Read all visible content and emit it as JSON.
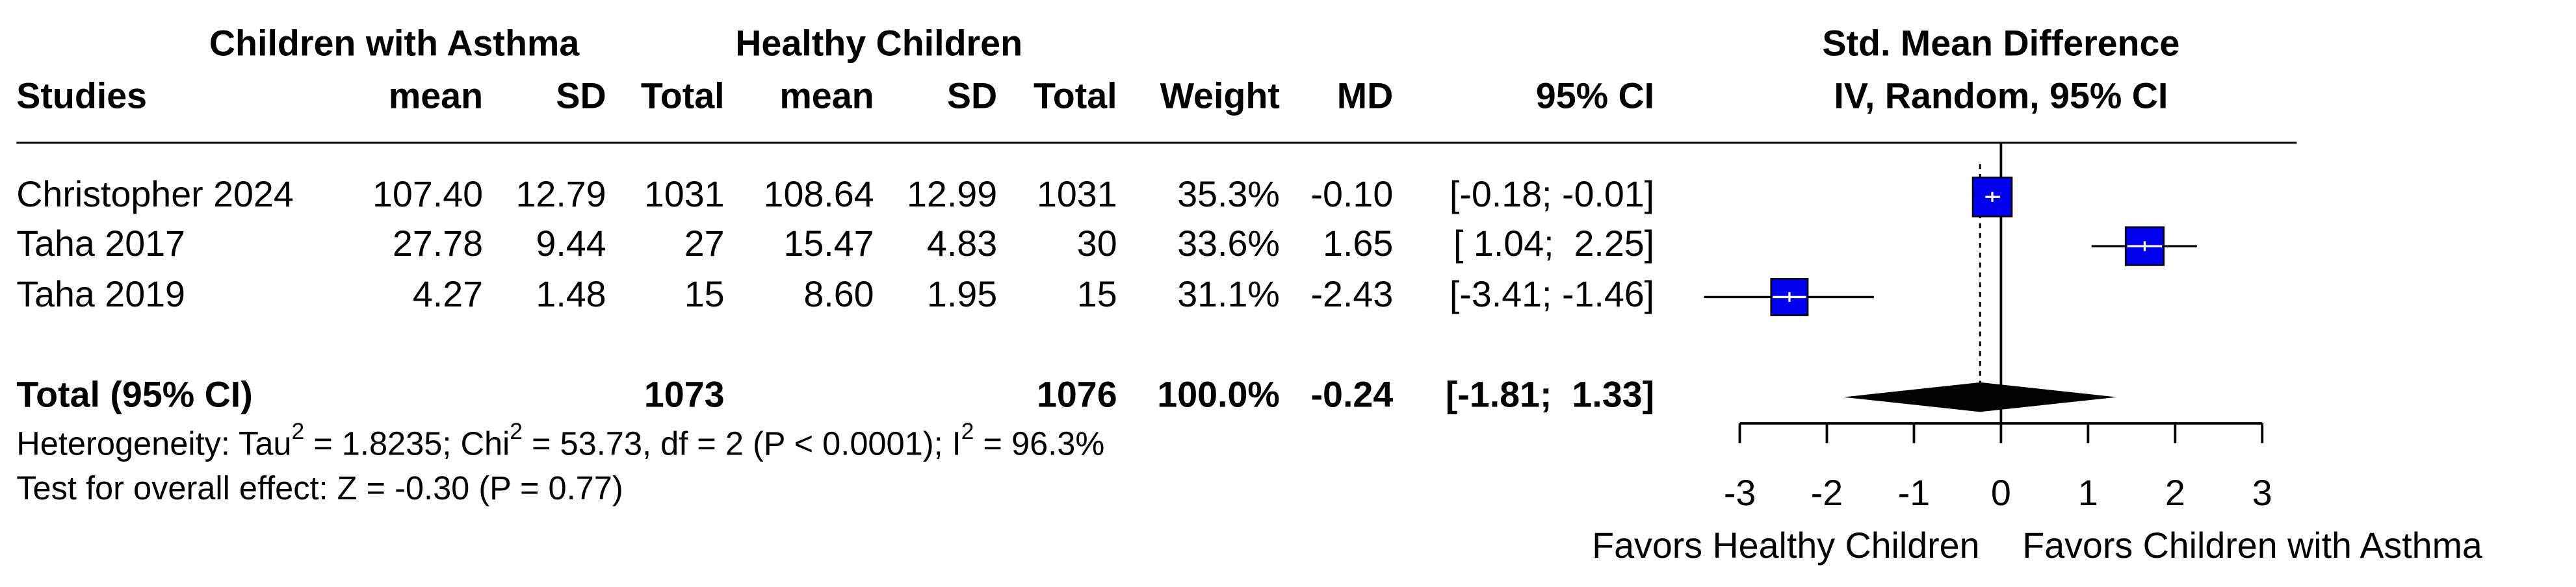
{
  "chart_data": {
    "type": "forest",
    "group_headers": [
      "Children with Asthma",
      "Healthy Children"
    ],
    "columns": [
      "Studies",
      "mean",
      "SD",
      "Total",
      "mean",
      "SD",
      "Total",
      "Weight",
      "MD",
      "95% CI"
    ],
    "plot_header": [
      "Std. Mean Difference",
      "IV, Random, 95% CI"
    ],
    "studies": [
      {
        "name": "Christopher 2024",
        "cells": [
          "107.40",
          "12.79",
          "1031",
          "108.64",
          "12.99",
          "1031",
          "35.3%",
          "-0.10",
          "[-0.18; -0.01]"
        ],
        "md": -0.1,
        "ci": [
          -0.18,
          -0.01
        ],
        "weight": 35.3
      },
      {
        "name": "Taha 2017",
        "cells": [
          "27.78",
          "9.44",
          "27",
          "15.47",
          "4.83",
          "30",
          "33.6%",
          "1.65",
          "[ 1.04;  2.25]"
        ],
        "md": 1.65,
        "ci": [
          1.04,
          2.25
        ],
        "weight": 33.6
      },
      {
        "name": "Taha 2019",
        "cells": [
          "4.27",
          "1.48",
          "15",
          "8.60",
          "1.95",
          "15",
          "31.1%",
          "-2.43",
          "[-3.41; -1.46]"
        ],
        "md": -2.43,
        "ci": [
          -3.41,
          -1.46
        ],
        "weight": 31.1
      }
    ],
    "total": {
      "label": "Total (95% CI)",
      "total1": "1073",
      "total2": "1076",
      "weight": "100.0%",
      "md_text": "-0.24",
      "ci_text": "[-1.81;  1.33]",
      "md": -0.24,
      "ci": [
        -1.81,
        1.33
      ]
    },
    "heterogeneity": [
      "Heterogeneity: Tau",
      "2",
      " = 1.8235; Chi",
      "2",
      " = 53.73, df = 2 (P < 0.0001); I",
      "2",
      " = 96.3%"
    ],
    "overall_effect": "Test for overall effect: Z = -0.30 (P = 0.77)",
    "xlim": [
      -3,
      3
    ],
    "xticks": [
      -3,
      -2,
      -1,
      0,
      1,
      2,
      3
    ],
    "xlabel_left": "Favors Healthy Children",
    "xlabel_right": "Favors Children with Asthma",
    "color": "#0000ee"
  }
}
